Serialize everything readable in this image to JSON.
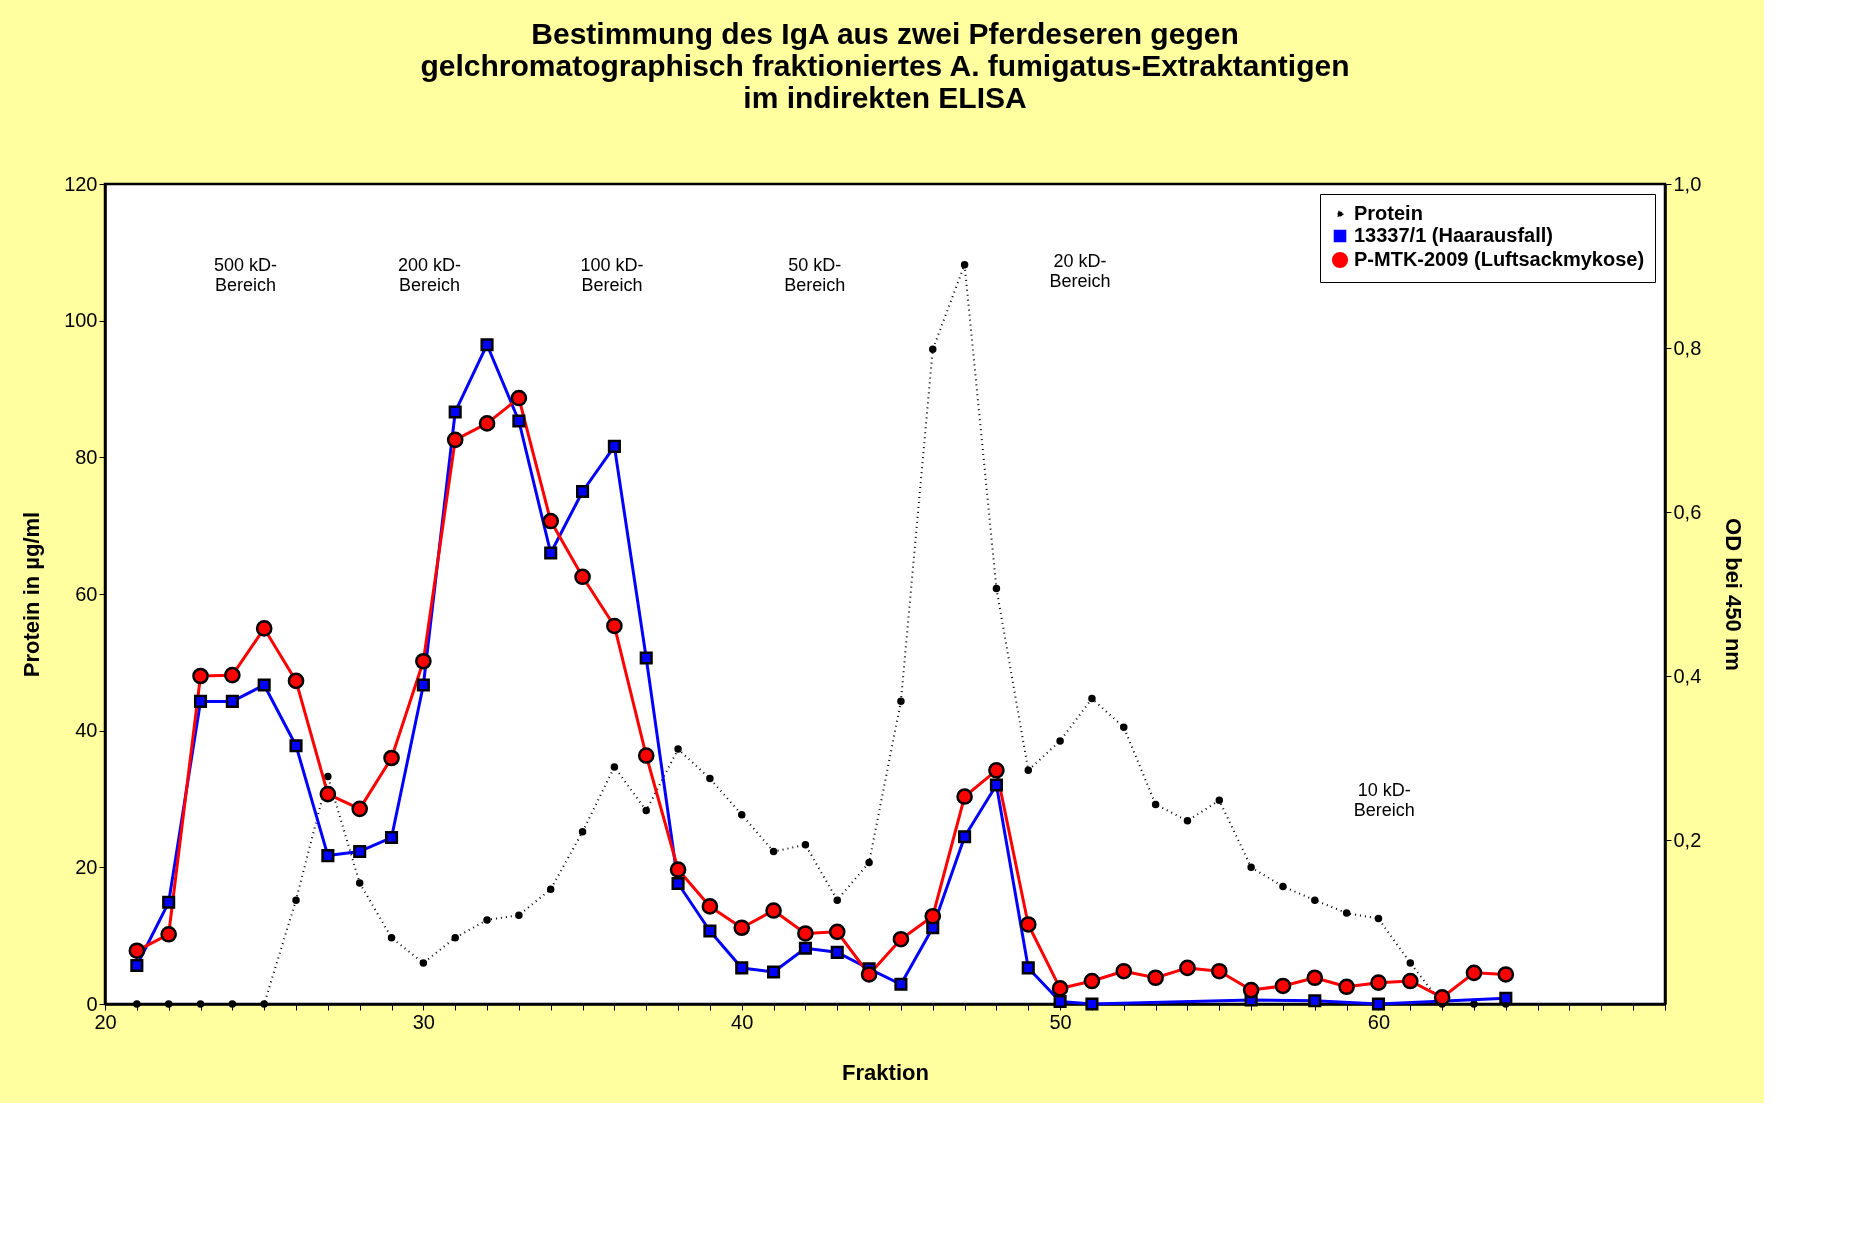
{
  "chart_data": {
    "type": "line",
    "title": "Bestimmung des IgA aus zwei Pferdeseren gegen\ngelchromatographisch fraktioniertes A. fumigatus-Extraktantigen\nim indirekten ELISA",
    "xlabel": "Fraktion",
    "ylabel": "Protein in µg/ml",
    "y2label": "OD bei 450 nm",
    "xlim": [
      20,
      69
    ],
    "ylim": [
      0,
      120
    ],
    "y2lim": [
      0,
      1.0
    ],
    "xticks": [
      20,
      {
        "value": 21,
        "label": null
      },
      {
        "value": 22,
        "label": null
      },
      {
        "value": 23,
        "label": null
      },
      {
        "value": 24,
        "label": null
      },
      {
        "value": 25,
        "label": null
      },
      {
        "value": 26,
        "label": null
      },
      {
        "value": 27,
        "label": null
      },
      {
        "value": 28,
        "label": null
      },
      {
        "value": 29,
        "label": null
      },
      30,
      {
        "value": 31,
        "label": null
      },
      {
        "value": 32,
        "label": null
      },
      {
        "value": 33,
        "label": null
      },
      {
        "value": 34,
        "label": null
      },
      {
        "value": 35,
        "label": null
      },
      {
        "value": 36,
        "label": null
      },
      {
        "value": 37,
        "label": null
      },
      {
        "value": 38,
        "label": null
      },
      {
        "value": 39,
        "label": null
      },
      40,
      {
        "value": 41,
        "label": null
      },
      {
        "value": 42,
        "label": null
      },
      {
        "value": 43,
        "label": null
      },
      {
        "value": 44,
        "label": null
      },
      {
        "value": 45,
        "label": null
      },
      {
        "value": 46,
        "label": null
      },
      {
        "value": 47,
        "label": null
      },
      {
        "value": 48,
        "label": null
      },
      {
        "value": 49,
        "label": null
      },
      50,
      {
        "value": 51,
        "label": null
      },
      {
        "value": 52,
        "label": null
      },
      {
        "value": 53,
        "label": null
      },
      {
        "value": 54,
        "label": null
      },
      {
        "value": 55,
        "label": null
      },
      {
        "value": 56,
        "label": null
      },
      {
        "value": 57,
        "label": null
      },
      {
        "value": 58,
        "label": null
      },
      {
        "value": 59,
        "label": null
      },
      60,
      {
        "value": 61,
        "label": null
      },
      {
        "value": 62,
        "label": null
      },
      {
        "value": 63,
        "label": null
      },
      {
        "value": 64,
        "label": null
      },
      {
        "value": 65,
        "label": null
      },
      {
        "value": 66,
        "label": null
      },
      {
        "value": 67,
        "label": null
      },
      {
        "value": 68,
        "label": null
      },
      {
        "value": 69,
        "label": null
      }
    ],
    "yticks": [
      0,
      20,
      40,
      60,
      80,
      100,
      120
    ],
    "y2ticks": [
      {
        "value": 0.2,
        "label": "0,2"
      },
      {
        "value": 0.4,
        "label": "0,4"
      },
      {
        "value": 0.6,
        "label": "0,6"
      },
      {
        "value": 0.8,
        "label": "0,8"
      },
      {
        "value": 1.0,
        "label": "1,0"
      }
    ],
    "grid": false,
    "legend": "top right",
    "series": [
      {
        "name": "Protein",
        "color": "#000000",
        "axis": "y",
        "line_style": "dotted",
        "marker": "circle",
        "x": [
          21,
          22,
          23,
          24,
          25,
          26,
          27,
          28,
          29,
          30,
          31,
          32,
          33,
          34,
          35,
          36,
          37,
          38,
          39,
          40,
          41,
          42,
          43,
          44,
          45,
          46,
          47,
          48,
          49,
          50,
          51,
          52,
          53,
          54,
          55,
          56,
          57,
          58,
          59,
          60,
          61,
          62,
          63,
          64
        ],
        "values": [
          0,
          0,
          0,
          0,
          0,
          15.2,
          33.3,
          17.7,
          9.7,
          6,
          9.7,
          12.3,
          13,
          16.8,
          25.2,
          34.7,
          28.3,
          37.3,
          33,
          27.7,
          22.3,
          23.3,
          15.2,
          20.7,
          44.3,
          95.8,
          108.2,
          60.8,
          34.2,
          38.5,
          44.7,
          40.5,
          29.2,
          26.8,
          29.8,
          20,
          17.2,
          15.2,
          13.3,
          12.5,
          6,
          0,
          0,
          0
        ]
      },
      {
        "name": "13337/1 (Haarausfall)",
        "color": "#0000ff",
        "axis": "y2",
        "line_style": "solid",
        "marker": "square",
        "x": [
          21,
          22,
          23,
          24,
          25,
          26,
          27,
          28,
          29,
          30,
          31,
          32,
          33,
          34,
          35,
          36,
          37,
          38,
          39,
          40,
          41,
          42,
          43,
          44,
          45,
          46,
          47,
          48,
          49,
          50,
          51,
          56,
          58,
          60,
          64
        ],
        "values": [
          0.047,
          0.124,
          0.369,
          0.369,
          0.389,
          0.315,
          0.181,
          0.186,
          0.203,
          0.389,
          0.722,
          0.804,
          0.711,
          0.55,
          0.625,
          0.68,
          0.422,
          0.147,
          0.089,
          0.044,
          0.039,
          0.068,
          0.063,
          0.043,
          0.024,
          0.093,
          0.204,
          0.267,
          0.044,
          0.003,
          0,
          0.005,
          0.004,
          0,
          0.007
        ]
      },
      {
        "name": "P-MTK-2009 (Luftsackmykose)",
        "color": "#ff0000",
        "axis": "y2",
        "line_style": "solid",
        "marker": "circle",
        "x": [
          21,
          22,
          23,
          24,
          25,
          26,
          27,
          28,
          29,
          30,
          31,
          32,
          33,
          34,
          35,
          36,
          37,
          38,
          39,
          40,
          41,
          42,
          43,
          44,
          45,
          46,
          47,
          48,
          49,
          50,
          51,
          52,
          53,
          54,
          55,
          56,
          57,
          58,
          59,
          60,
          61,
          62,
          63,
          64
        ],
        "values": [
          0.065,
          0.085,
          0.4,
          0.401,
          0.458,
          0.394,
          0.256,
          0.238,
          0.3,
          0.418,
          0.688,
          0.708,
          0.739,
          0.589,
          0.521,
          0.461,
          0.303,
          0.164,
          0.119,
          0.093,
          0.114,
          0.086,
          0.088,
          0.036,
          0.079,
          0.107,
          0.253,
          0.285,
          0.097,
          0.019,
          0.028,
          0.04,
          0.032,
          0.044,
          0.04,
          0.017,
          0.022,
          0.032,
          0.021,
          0.026,
          0.028,
          0.008,
          0.038,
          0.036
        ]
      }
    ],
    "annotations": [
      "500 kD-\nBereich",
      "200 kD-\nBereich",
      "100 kD-\nBereich",
      "50 kD-\nBereich",
      "20 kD-\nBereich",
      "10 kD-\nBereich"
    ]
  }
}
